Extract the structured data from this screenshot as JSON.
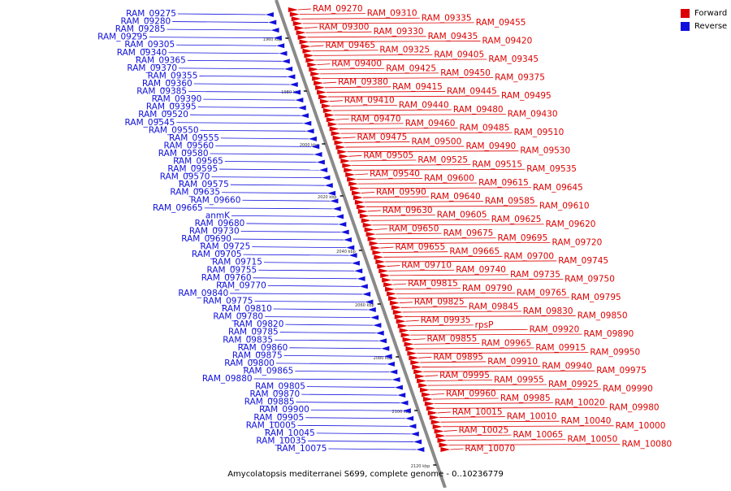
{
  "colors": {
    "forward": "#dd0000",
    "reverse": "#1010dd",
    "axis": "#8a8a8a",
    "tick": "#111111"
  },
  "legend": {
    "forward": "Forward",
    "reverse": "Reverse"
  },
  "caption": "Amycolatopsis mediterranei S699, complete genome - 0..10236779",
  "axis": {
    "tick_labels": [
      "1960 kbp",
      "1980 kbp",
      "2000 kbp",
      "2020 kbp",
      "2040 kbp",
      "2060 kbp",
      "2080 kbp",
      "2100 kbp",
      "2120 kbp"
    ]
  },
  "reverse_genes": [
    "RAM_09275",
    "RAM_09280",
    "RAM_09285",
    "RAM_09295",
    "RAM_09305",
    "RAM_09340",
    "RAM_09365",
    "RAM_09370",
    "RAM_09355",
    "RAM_09360",
    "RAM_09385",
    "RAM_09390",
    "RAM_09395",
    "RAM_09520",
    "RAM_09545",
    "RAM_09550",
    "RAM_09555",
    "RAM_09560",
    "RAM_09580",
    "RAM_09565",
    "RAM_09595",
    "RAM_09570",
    "RAM_09575",
    "RAM_09635",
    "RAM_09660",
    "RAM_09665",
    "anmK",
    "RAM_09680",
    "RAM_09730",
    "RAM_09690",
    "RAM_09725",
    "RAM_09705",
    "RAM_09715",
    "RAM_09755",
    "RAM_09760",
    "RAM_09770",
    "RAM_09840",
    "RAM_09775",
    "RAM_09810",
    "RAM_09780",
    "RAM_09820",
    "RAM_09785",
    "RAM_09835",
    "RAM_09860",
    "RAM_09875",
    "RAM_09800",
    "RAM_09865",
    "RAM_09880",
    "RAM_09805",
    "RAM_09870",
    "RAM_09885",
    "RAM_09900",
    "RAM_09905",
    "RAM_10005",
    "RAM_10045",
    "RAM_10035",
    "RAM_10075"
  ],
  "forward_genes": [
    "RAM_09270",
    "RAM_09310",
    "RAM_09335",
    "RAM_09455",
    "RAM_09300",
    "RAM_09330",
    "RAM_09435",
    "RAM_09420",
    "RAM_09465",
    "RAM_09325",
    "RAM_09405",
    "RAM_09345",
    "RAM_09400",
    "RAM_09425",
    "RAM_09450",
    "RAM_09375",
    "RAM_09380",
    "RAM_09415",
    "RAM_09445",
    "RAM_09495",
    "RAM_09410",
    "RAM_09440",
    "RAM_09480",
    "RAM_09430",
    "RAM_09470",
    "RAM_09460",
    "RAM_09485",
    "RAM_09510",
    "RAM_09475",
    "RAM_09500",
    "RAM_09490",
    "RAM_09530",
    "RAM_09505",
    "RAM_09525",
    "RAM_09515",
    "RAM_09535",
    "RAM_09540",
    "RAM_09600",
    "RAM_09615",
    "RAM_09645",
    "RAM_09590",
    "RAM_09640",
    "RAM_09585",
    "RAM_09610",
    "RAM_09630",
    "RAM_09605",
    "RAM_09625",
    "RAM_09620",
    "RAM_09650",
    "RAM_09675",
    "RAM_09695",
    "RAM_09720",
    "RAM_09655",
    "RAM_09665",
    "RAM_09700",
    "RAM_09745",
    "RAM_09710",
    "RAM_09740",
    "RAM_09735",
    "RAM_09750",
    "RAM_09815",
    "RAM_09790",
    "RAM_09765",
    "RAM_09795",
    "RAM_09825",
    "RAM_09845",
    "RAM_09830",
    "RAM_09850",
    "RAM_09935",
    "rpsP",
    "RAM_09920",
    "RAM_09890",
    "RAM_09855",
    "RAM_09965",
    "RAM_09915",
    "RAM_09950",
    "RAM_09895",
    "RAM_09910",
    "RAM_09940",
    "RAM_09975",
    "RAM_09995",
    "RAM_09955",
    "RAM_09925",
    "RAM_09990",
    "RAM_09960",
    "RAM_09985",
    "RAM_10020",
    "RAM_09980",
    "RAM_10015",
    "RAM_10010",
    "RAM_10040",
    "RAM_10000",
    "RAM_10025",
    "RAM_10065",
    "RAM_10050",
    "RAM_10080",
    "RAM_10070"
  ]
}
